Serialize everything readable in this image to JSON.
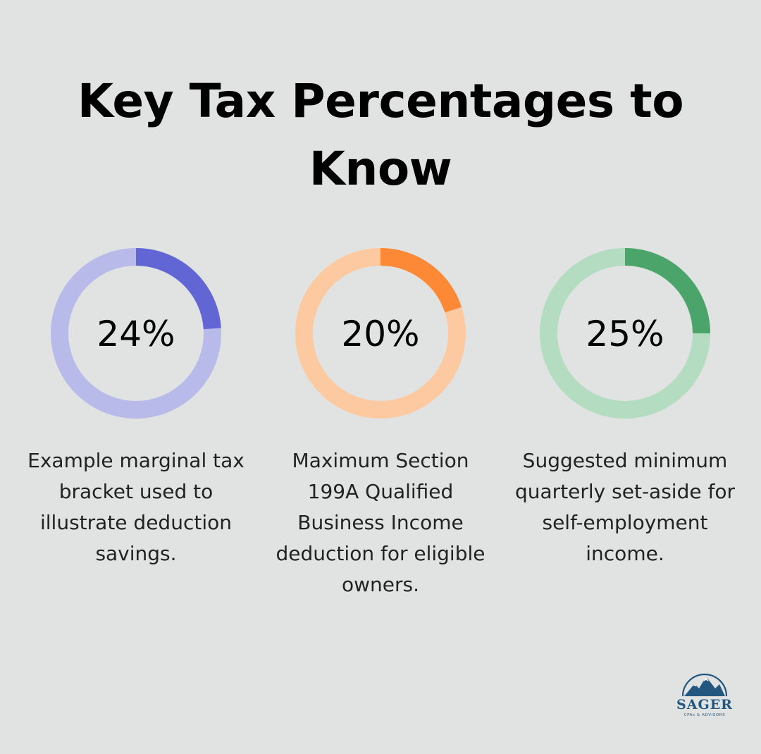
{
  "header": {
    "title": "Key Tax Percentages to Know"
  },
  "chart_data": {
    "type": "pie",
    "title": "Key Tax Percentages to Know",
    "items": [
      {
        "value": 24,
        "label": "24%",
        "description": "Example marginal tax bracket used to illustrate deduction savings.",
        "color": "#6266d4",
        "track_color": "#b8bbea"
      },
      {
        "value": 20,
        "label": "20%",
        "description": "Maximum Section 199A Qualified Business Income deduction for eligible owners.",
        "color": "#fd8836",
        "track_color": "#fdc9a0"
      },
      {
        "value": 25,
        "label": "25%",
        "description": "Suggested minimum quarterly set-aside for self-employment income.",
        "color": "#4ba56a",
        "track_color": "#b3dcc0"
      }
    ]
  },
  "logo": {
    "name": "SAGER",
    "tagline": "CPAs & ADVISORS",
    "icon": "mountain-icon",
    "color": "#23577f"
  }
}
